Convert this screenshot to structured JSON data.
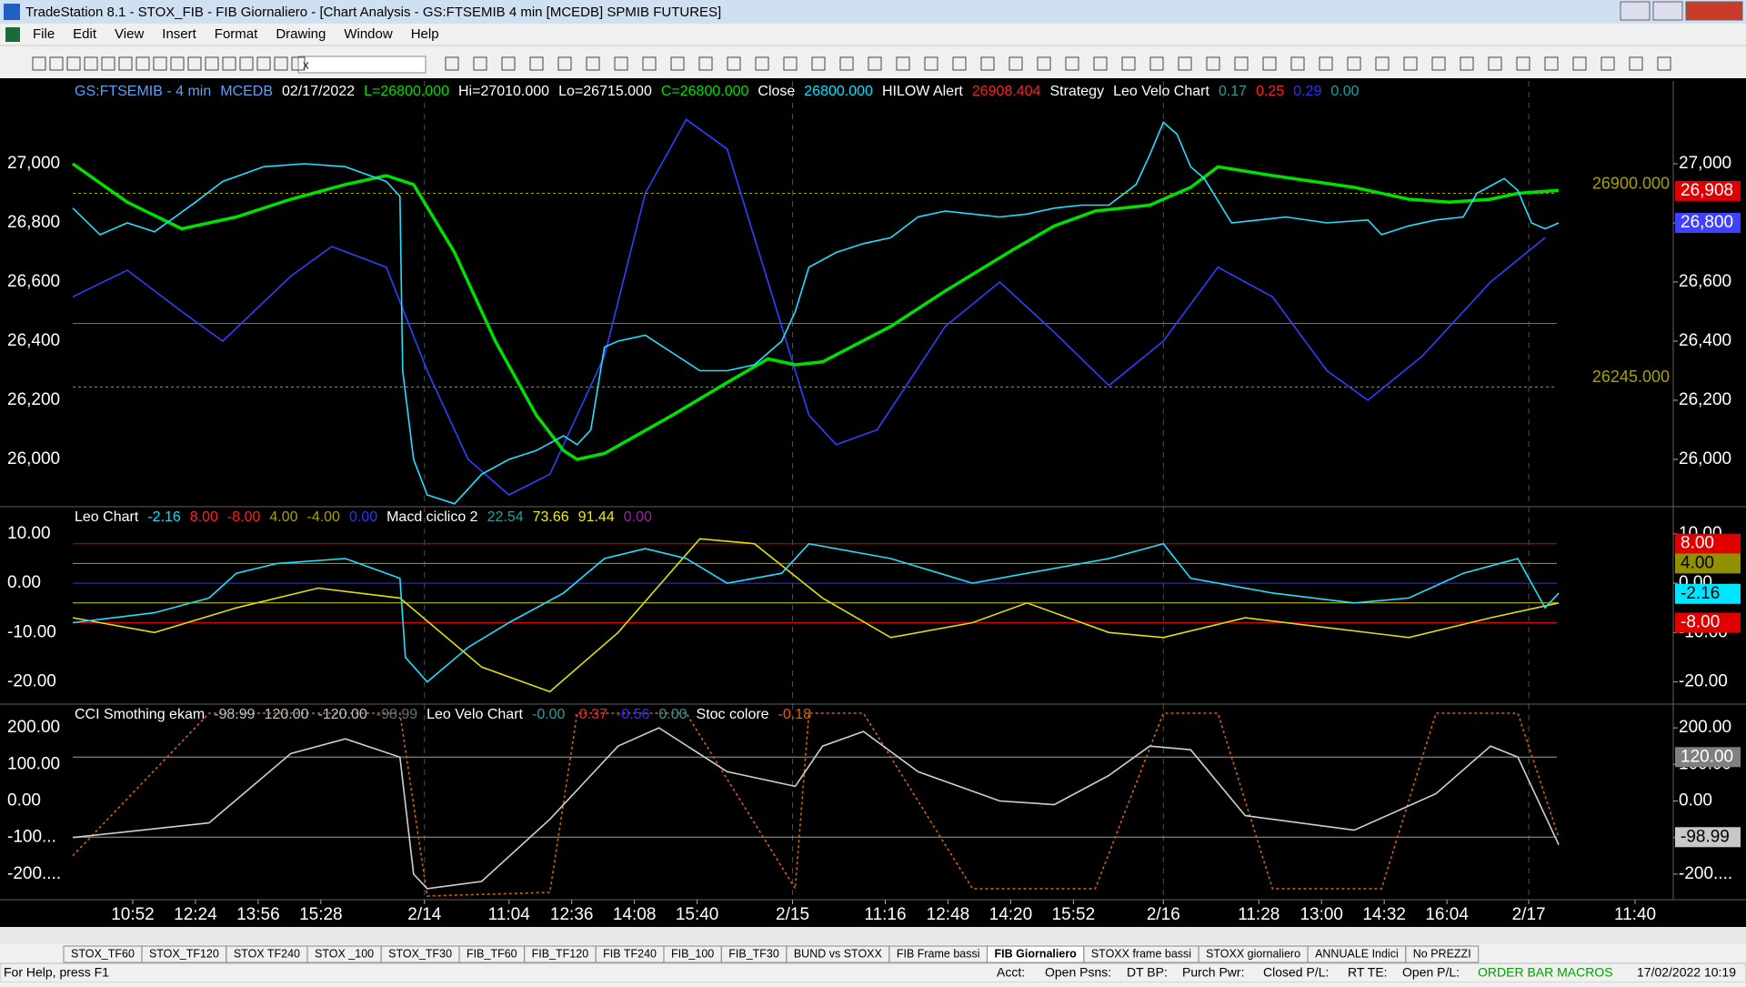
{
  "window": {
    "title": "TradeStation 8.1 - STOX_FIB - FIB Giornaliero - [Chart Analysis - GS:FTSEMIB  4 min  [MCEDB] SPMIB FUTURES]",
    "menu": [
      "File",
      "Edit",
      "View",
      "Insert",
      "Format",
      "Drawing",
      "Window",
      "Help"
    ],
    "symbol_box": "x",
    "tabs": [
      "STOX_TF60",
      "STOX_TF120",
      "STOX TF240",
      "STOX _100",
      "STOX_TF30",
      "FIB_TF60",
      "FIB_TF120",
      "FIB TF240",
      "FIB_100",
      "FIB_TF30",
      "BUND vs STOXX",
      "FIB Frame bassi",
      "FIB Giornaliero",
      "STOXX frame bassi",
      "STOXX giornaliero",
      "ANNUALE Indici",
      "No PREZZI"
    ],
    "active_tab": 12,
    "status": [
      "For Help, press F1",
      "Acct:",
      "Open Psns:",
      "DT BP:",
      "Purch Pwr:",
      "Closed P/L:",
      "RT TE:",
      "Open P/L:",
      "ORDER BAR MACROS",
      "17/02/2022 10:19"
    ]
  },
  "chart_data": [
    {
      "type": "line",
      "header": [
        {
          "text": "GS:FTSEMIB - 4 min",
          "color": "#5aa0ff"
        },
        {
          "text": "MCEDB",
          "color": "#5aa0ff"
        },
        {
          "text": "02/17/2022",
          "color": "#ffffff"
        },
        {
          "text": "L=26800.000",
          "color": "#00e000"
        },
        {
          "text": "Hi=27010.000",
          "color": "#ffffff"
        },
        {
          "text": "Lo=26715.000",
          "color": "#ffffff"
        },
        {
          "text": "C=26800.000",
          "color": "#00e000"
        },
        {
          "text": "Close",
          "color": "#ffffff"
        },
        {
          "text": "26800.000",
          "color": "#00e5ff"
        },
        {
          "text": "HILOW Alert",
          "color": "#ffffff"
        },
        {
          "text": "26908.404",
          "color": "#ff2020"
        },
        {
          "text": "Strategy",
          "color": "#ffffff"
        },
        {
          "text": "Leo Velo Chart",
          "color": "#ffffff"
        },
        {
          "text": "0.17",
          "color": "#20a0a0"
        },
        {
          "text": "0.25",
          "color": "#ff2020"
        },
        {
          "text": "0.29",
          "color": "#3030ff"
        },
        {
          "text": "0.00",
          "color": "#20a0a0"
        }
      ],
      "xlim": [
        0,
        587
      ],
      "ylim": [
        25840,
        27280
      ],
      "yticks": [
        {
          "value": 26000,
          "label": "26,000"
        },
        {
          "value": 26200,
          "label": "26,200"
        },
        {
          "value": 26400,
          "label": "26,400"
        },
        {
          "value": 26600,
          "label": "26,600"
        },
        {
          "value": 26800,
          "label": "26,800"
        },
        {
          "value": 27000,
          "label": "27,000"
        }
      ],
      "levels": [
        {
          "value": 26900,
          "label": "26900.000",
          "color": "#a8a000"
        },
        {
          "value": 26460,
          "color": "#707070"
        },
        {
          "value": 26245,
          "label": "26245.000",
          "color": "#a8a000"
        }
      ],
      "markers": [
        {
          "value": 26908,
          "label": "26,908",
          "color": "#e00000",
          "text_color": "#ffffff"
        },
        {
          "value": 26800,
          "label": "26,800",
          "color": "#4040ff",
          "text_color": "#ffffff"
        }
      ],
      "series": [
        {
          "color": "#3040ff",
          "x": [
            0,
            20,
            40,
            55,
            80,
            95,
            115,
            130,
            145,
            160,
            175,
            195,
            210,
            225,
            240,
            255,
            270,
            280,
            295,
            320,
            340,
            360,
            380,
            400,
            420,
            440,
            460,
            475,
            495,
            520,
            540
          ],
          "values": [
            26550,
            26640,
            26500,
            26400,
            26620,
            26720,
            26650,
            26300,
            26000,
            25880,
            25950,
            26350,
            26900,
            27150,
            27050,
            26600,
            26150,
            26050,
            26100,
            26450,
            26600,
            26430,
            26250,
            26400,
            26650,
            26550,
            26300,
            26200,
            26350,
            26600,
            26750
          ]
        },
        {
          "color": "#00e000",
          "x": [
            0,
            20,
            40,
            60,
            80,
            100,
            115,
            125,
            140,
            155,
            170,
            180,
            185,
            195,
            220,
            240,
            255,
            265,
            275,
            300,
            320,
            345,
            360,
            375,
            395,
            410,
            420,
            440,
            470,
            490,
            505,
            520,
            530,
            545
          ],
          "values": [
            27000,
            26870,
            26780,
            26820,
            26880,
            26930,
            26960,
            26930,
            26700,
            26400,
            26150,
            26030,
            26000,
            26020,
            26150,
            26260,
            26340,
            26320,
            26330,
            26450,
            26570,
            26710,
            26790,
            26840,
            26860,
            26920,
            26990,
            26960,
            26920,
            26880,
            26870,
            26880,
            26900,
            26910
          ]
        },
        {
          "color": "#20e0ff",
          "x": [
            0,
            10,
            20,
            30,
            45,
            55,
            70,
            85,
            100,
            115,
            120,
            121,
            125,
            130,
            140,
            150,
            160,
            170,
            180,
            185,
            190,
            195,
            200,
            210,
            220,
            230,
            240,
            250,
            260,
            265,
            270,
            280,
            290,
            300,
            310,
            320,
            330,
            340,
            350,
            360,
            370,
            380,
            390,
            395,
            400,
            405,
            410,
            415,
            425,
            435,
            445,
            460,
            475,
            480,
            490,
            500,
            510,
            515,
            525,
            530,
            535,
            540,
            545
          ],
          "values": [
            26850,
            26760,
            26800,
            26770,
            26870,
            26940,
            26990,
            27000,
            26990,
            26940,
            26890,
            26300,
            26000,
            25880,
            25850,
            25950,
            26000,
            26030,
            26080,
            26050,
            26100,
            26380,
            26400,
            26420,
            26360,
            26300,
            26300,
            26320,
            26400,
            26500,
            26650,
            26700,
            26730,
            26750,
            26820,
            26840,
            26830,
            26820,
            26830,
            26850,
            26860,
            26860,
            26930,
            27030,
            27140,
            27100,
            26990,
            26950,
            26800,
            26810,
            26820,
            26800,
            26810,
            26760,
            26790,
            26810,
            26820,
            26900,
            26950,
            26910,
            26800,
            26780,
            26800
          ]
        }
      ]
    },
    {
      "type": "line",
      "header": [
        {
          "text": "Leo Chart",
          "color": "#ffffff"
        },
        {
          "text": "-2.16",
          "color": "#00e5ff"
        },
        {
          "text": "8.00",
          "color": "#ff2020"
        },
        {
          "text": "-8.00",
          "color": "#ff2020"
        },
        {
          "text": "4.00",
          "color": "#a8a000"
        },
        {
          "text": "-4.00",
          "color": "#a8a000"
        },
        {
          "text": "0.00",
          "color": "#3030ff"
        },
        {
          "text": "Macd ciclico 2",
          "color": "#ffffff"
        },
        {
          "text": "22.54",
          "color": "#20a0a0"
        },
        {
          "text": "73.66",
          "color": "#f0f000"
        },
        {
          "text": "91.44",
          "color": "#f0f000"
        },
        {
          "text": "0.00",
          "color": "#a020a0"
        }
      ],
      "xlim": [
        0,
        587
      ],
      "ylim": [
        -24.5,
        15.5
      ],
      "yticks": [
        {
          "value": -20,
          "label": "-20.00"
        },
        {
          "value": -10,
          "label": "-10.00"
        },
        {
          "value": 0,
          "label": "0.00"
        },
        {
          "value": 10,
          "label": "10.00"
        }
      ],
      "levels": [
        {
          "value": 8,
          "color": "#e00000"
        },
        {
          "value": 4,
          "color": "#a8a000"
        },
        {
          "value": 0,
          "color": "#3030ff"
        },
        {
          "value": -4,
          "color": "#d0d000"
        },
        {
          "value": -8,
          "color": "#e00000"
        }
      ],
      "markers": [
        {
          "value": 8,
          "label": "8.00",
          "color": "#e00000",
          "text_color": "#ffffff"
        },
        {
          "value": 4,
          "label": "4.00",
          "color": "#909000",
          "text_color": "#000000"
        },
        {
          "value": -2.16,
          "label": "-2.16",
          "color": "#00e5ff",
          "text_color": "#000000"
        },
        {
          "value": -8,
          "label": "-8.00",
          "color": "#e00000",
          "text_color": "#ffffff"
        }
      ],
      "series": [
        {
          "color": "#e0e000",
          "x": [
            0,
            30,
            60,
            90,
            120,
            150,
            175,
            200,
            230,
            250,
            275,
            300,
            330,
            350,
            380,
            400,
            430,
            460,
            490,
            520,
            545
          ],
          "values": [
            -7,
            -10,
            -5,
            -1,
            -3,
            -17,
            -22,
            -10,
            9,
            8,
            -3,
            -11,
            -8,
            -4,
            -10,
            -11,
            -7,
            -9,
            -11,
            -7,
            -4
          ]
        },
        {
          "color": "#20e0ff",
          "x": [
            0,
            30,
            50,
            60,
            75,
            100,
            120,
            122,
            130,
            145,
            160,
            180,
            195,
            210,
            225,
            240,
            260,
            270,
            300,
            330,
            350,
            380,
            400,
            410,
            440,
            470,
            490,
            510,
            530,
            540,
            545
          ],
          "values": [
            -8,
            -6,
            -3,
            2,
            4,
            5,
            1,
            -15,
            -20,
            -13,
            -8,
            -2,
            5,
            7,
            5,
            0,
            2,
            8,
            5,
            0,
            2,
            5,
            8,
            1,
            -2,
            -4,
            -3,
            2,
            5,
            -5,
            -2
          ]
        }
      ]
    },
    {
      "type": "line",
      "header": [
        {
          "text": "CCI Smothing ekam",
          "color": "#ffffff"
        },
        {
          "text": "-98.99",
          "color": "#c0c0c0"
        },
        {
          "text": "120.00",
          "color": "#c0c0c0"
        },
        {
          "text": "-120.00",
          "color": "#c0c0c0"
        },
        {
          "text": "-98.99",
          "color": "#707070"
        },
        {
          "text": "Leo Velo Chart",
          "color": "#ffffff"
        },
        {
          "text": "-0.00",
          "color": "#20a0a0"
        },
        {
          "text": "-0.37",
          "color": "#ff2020"
        },
        {
          "text": "-0.56",
          "color": "#3030ff"
        },
        {
          "text": "0.00",
          "color": "#20a0a0"
        },
        {
          "text": "Stoc colore",
          "color": "#ffffff"
        },
        {
          "text": "-0.18",
          "color": "#e06000"
        }
      ],
      "xlim": [
        0,
        587
      ],
      "ylim": [
        -270,
        265
      ],
      "yticks": [
        {
          "value": -200,
          "label": "-200...."
        },
        {
          "value": -100,
          "label": "-100..."
        },
        {
          "value": 0,
          "label": "0.00"
        },
        {
          "value": 100,
          "label": "100.00"
        },
        {
          "value": 200,
          "label": "200.00"
        }
      ],
      "xticks": [
        {
          "value": 22,
          "label": "10:52"
        },
        {
          "value": 45,
          "label": "12:24"
        },
        {
          "value": 68,
          "label": "13:56"
        },
        {
          "value": 91,
          "label": "15:28"
        },
        {
          "value": 129,
          "label": "2/14"
        },
        {
          "value": 160,
          "label": "11:04"
        },
        {
          "value": 183,
          "label": "12:36"
        },
        {
          "value": 206,
          "label": "14:08"
        },
        {
          "value": 229,
          "label": "15:40"
        },
        {
          "value": 264,
          "label": "2/15"
        },
        {
          "value": 298,
          "label": "11:16"
        },
        {
          "value": 321,
          "label": "12:48"
        },
        {
          "value": 344,
          "label": "14:20"
        },
        {
          "value": 367,
          "label": "15:52"
        },
        {
          "value": 400,
          "label": "2/16"
        },
        {
          "value": 435,
          "label": "11:28"
        },
        {
          "value": 458,
          "label": "13:00"
        },
        {
          "value": 481,
          "label": "14:32"
        },
        {
          "value": 504,
          "label": "16:04"
        },
        {
          "value": 534,
          "label": "2/17"
        },
        {
          "value": 573,
          "label": "11:40"
        }
      ],
      "levels": [
        {
          "value": 120,
          "color": "#a0a0a0"
        },
        {
          "value": -98.99,
          "color": "#a0a0a0"
        }
      ],
      "markers": [
        {
          "value": 120,
          "label": "120.00",
          "color": "#808080",
          "text_color": "#ffffff"
        },
        {
          "value": -98.99,
          "label": "-98.99",
          "color": "#c8c8c8",
          "text_color": "#000000"
        }
      ],
      "series": [
        {
          "color": "#d06010",
          "dash": true,
          "x": [
            0,
            50,
            120,
            130,
            175,
            185,
            225,
            265,
            270,
            290,
            330,
            375,
            400,
            420,
            440,
            480,
            500,
            530,
            545
          ],
          "values": [
            -150,
            240,
            240,
            -260,
            -250,
            240,
            240,
            -240,
            240,
            240,
            -240,
            -240,
            240,
            240,
            -240,
            -240,
            240,
            240,
            -100
          ]
        },
        {
          "color": "#d0d0d0",
          "x": [
            0,
            50,
            80,
            100,
            120,
            125,
            130,
            150,
            175,
            200,
            215,
            240,
            265,
            275,
            290,
            310,
            340,
            360,
            380,
            395,
            410,
            430,
            470,
            500,
            520,
            530,
            545
          ],
          "values": [
            -100,
            -60,
            130,
            170,
            120,
            -200,
            -240,
            -220,
            -50,
            150,
            200,
            80,
            40,
            150,
            190,
            80,
            0,
            -10,
            70,
            150,
            140,
            -40,
            -80,
            20,
            150,
            120,
            -120
          ]
        }
      ]
    }
  ]
}
